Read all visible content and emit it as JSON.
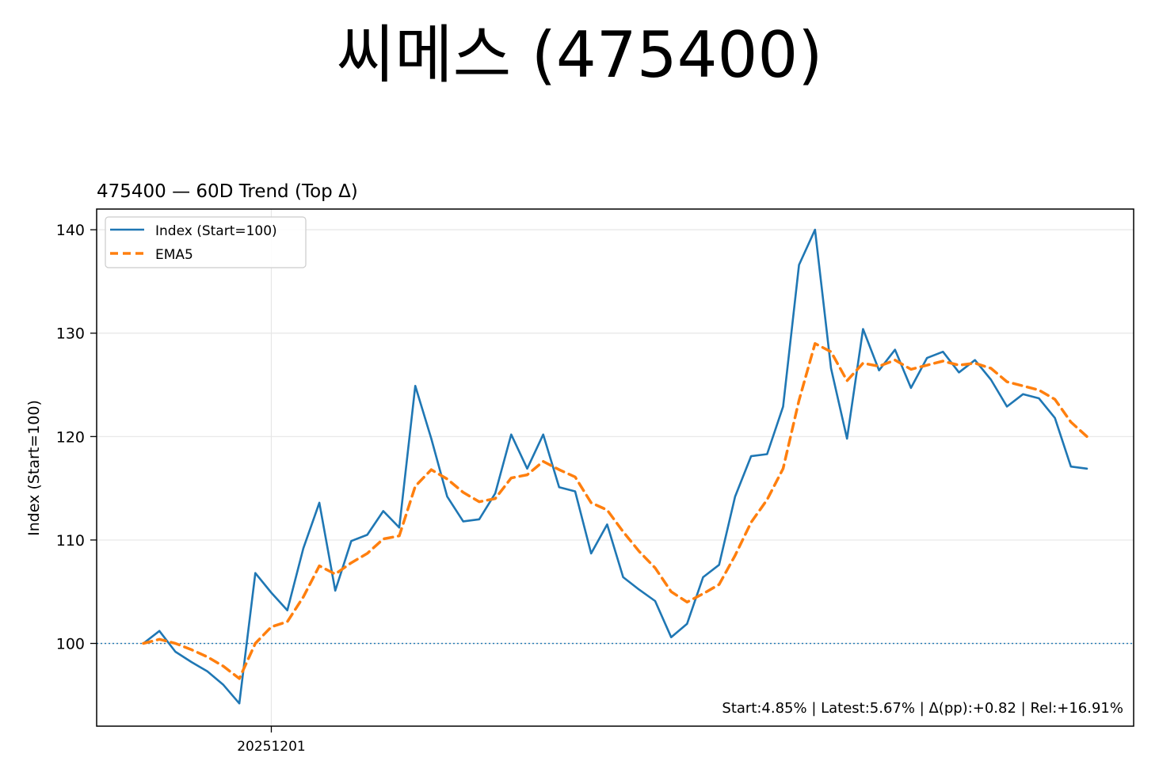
{
  "suptitle": "씨메스 (475400)",
  "colors": {
    "index": "#1f77b4",
    "ema": "#ff7f0e",
    "grid": "#e6e6e6",
    "baseline": "#1f77b4"
  },
  "chart_data": {
    "type": "line",
    "title": "475400 — 60D Trend (Top Δ)",
    "ylabel": "Index (Start=100)",
    "xlabel": "",
    "ylim": [
      92,
      142
    ],
    "yticks": [
      100,
      110,
      120,
      130,
      140
    ],
    "xticks": [
      {
        "index": 8,
        "label": "20251201"
      }
    ],
    "grid": true,
    "baseline": 100,
    "legend": {
      "placement": "upper-left"
    },
    "annotation": "Start:4.85% | Latest:5.67% | Δ(pp):+0.82 | Rel:+16.91%",
    "x": [
      0,
      1,
      2,
      3,
      4,
      5,
      6,
      7,
      8,
      9,
      10,
      11,
      12,
      13,
      14,
      15,
      16,
      17,
      18,
      19,
      20,
      21,
      22,
      23,
      24,
      25,
      26,
      27,
      28,
      29,
      30,
      31,
      32,
      33,
      34,
      35,
      36,
      37,
      38,
      39,
      40,
      41,
      42,
      43,
      44,
      45,
      46,
      47,
      48,
      49,
      50,
      51,
      52,
      53,
      54,
      55,
      56,
      57,
      58,
      59
    ],
    "series": [
      {
        "name": "Index (Start=100)",
        "style": "solid",
        "values": [
          100.0,
          101.2,
          99.2,
          98.2,
          97.3,
          96.0,
          94.2,
          106.8,
          104.9,
          103.2,
          109.2,
          113.6,
          105.1,
          109.9,
          110.5,
          112.8,
          111.2,
          124.9,
          119.8,
          114.2,
          111.8,
          112.0,
          114.5,
          120.2,
          116.9,
          120.2,
          115.1,
          114.7,
          108.7,
          111.5,
          106.4,
          105.2,
          104.1,
          100.6,
          101.9,
          106.4,
          107.6,
          114.2,
          118.1,
          118.3,
          122.9,
          136.6,
          140.0,
          126.6,
          119.8,
          130.4,
          126.4,
          128.4,
          124.7,
          127.6,
          128.2,
          126.2,
          127.4,
          125.5,
          122.9,
          124.1,
          123.7,
          121.8,
          117.1,
          116.9
        ]
      },
      {
        "name": "EMA5",
        "style": "dashed",
        "values": [
          100.0,
          100.4,
          100.0,
          99.4,
          98.7,
          97.8,
          96.6,
          100.0,
          101.6,
          102.1,
          104.5,
          107.5,
          106.7,
          107.8,
          108.7,
          110.1,
          110.4,
          115.2,
          116.8,
          115.9,
          114.6,
          113.7,
          114.0,
          116.0,
          116.3,
          117.6,
          116.8,
          116.1,
          113.6,
          112.9,
          110.8,
          108.9,
          107.3,
          105.0,
          104.0,
          104.8,
          105.7,
          108.5,
          111.7,
          113.9,
          116.9,
          123.5,
          129.0,
          128.2,
          125.4,
          127.1,
          126.8,
          127.4,
          126.5,
          126.9,
          127.3,
          126.9,
          127.1,
          126.6,
          125.3,
          124.9,
          124.5,
          123.6,
          121.4,
          120.0
        ]
      }
    ]
  }
}
